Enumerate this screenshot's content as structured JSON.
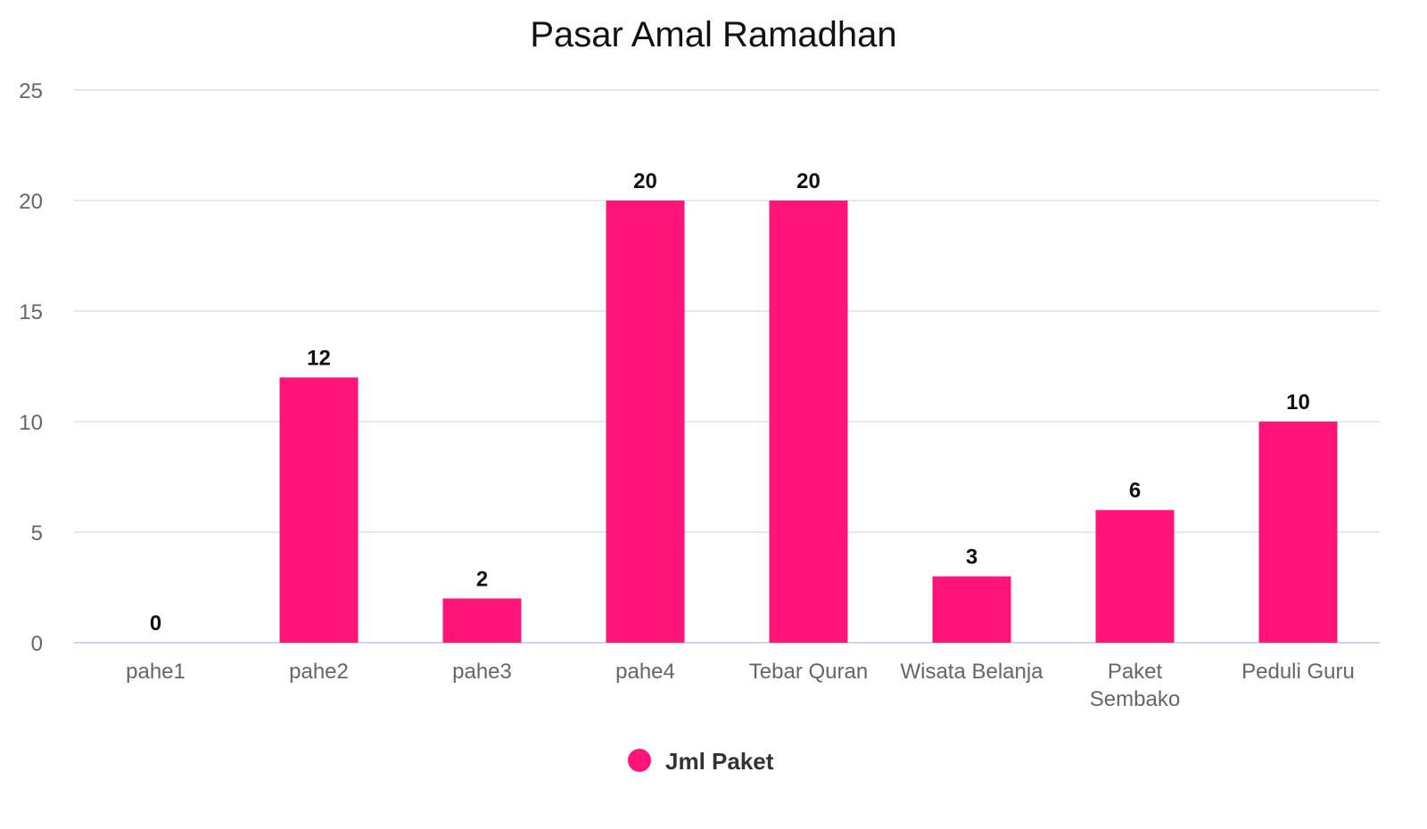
{
  "chart_data": {
    "type": "bar",
    "title": "Pasar Amal Ramadhan",
    "categories": [
      [
        "pahe1"
      ],
      [
        "pahe2"
      ],
      [
        "pahe3"
      ],
      [
        "pahe4"
      ],
      [
        "Tebar Quran"
      ],
      [
        "Wisata Belanja"
      ],
      [
        "Paket",
        "Sembako"
      ],
      [
        "Peduli Guru"
      ]
    ],
    "series": [
      {
        "name": "Jml Paket",
        "values": [
          0,
          12,
          2,
          20,
          20,
          3,
          6,
          10
        ],
        "color": "#FF1579"
      }
    ],
    "ylim": [
      0,
      25
    ],
    "yticks": [
      0,
      5,
      10,
      15,
      20,
      25
    ],
    "grid": true,
    "legend": "bottom",
    "data_labels": true
  }
}
